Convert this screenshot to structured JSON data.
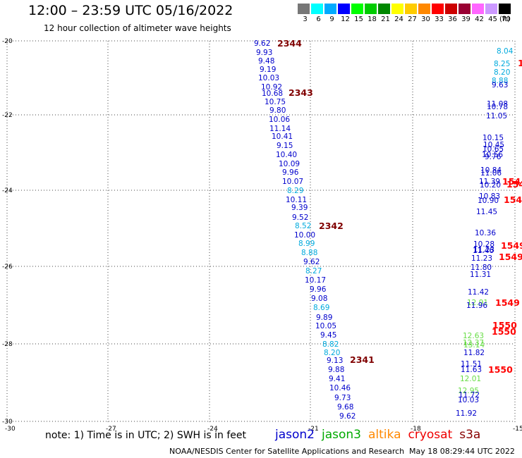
{
  "title": "12:00 – 23:59 UTC 05/16/2022",
  "subtitle": "12 hour collection of altimeter wave heights",
  "legend": {
    "labels": [
      "3",
      "6",
      "9",
      "12",
      "15",
      "18",
      "21",
      "24",
      "27",
      "30",
      "33",
      "36",
      "39",
      "42",
      "45",
      "70"
    ],
    "unit": "(ft)",
    "colors": [
      "#777777",
      "#00ffff",
      "#00aaff",
      "#0000ff",
      "#00ff00",
      "#00cc00",
      "#008800",
      "#ffff00",
      "#ffcc00",
      "#ff8800",
      "#ff0000",
      "#cc0000",
      "#990033",
      "#ff66ff",
      "#cc99ff",
      "#000000"
    ]
  },
  "axes": {
    "lat_labels": [
      "-20",
      "-22",
      "-24",
      "-26",
      "-28",
      "-30"
    ],
    "lon_labels": [
      "-30",
      "-27",
      "-24",
      "-21",
      "-18",
      "-15"
    ]
  },
  "pass_labels": [
    {
      "text": "2344",
      "color": "#800000"
    },
    {
      "text": "2343",
      "color": "#800000"
    },
    {
      "text": "2342",
      "color": "#800000"
    },
    {
      "text": "2341",
      "color": "#800000"
    },
    {
      "text": "1549",
      "color": "#ff0000"
    },
    {
      "text": "1549",
      "color": "#ff0000"
    },
    {
      "text": "1549",
      "color": "#ff0000"
    },
    {
      "text": "1550",
      "color": "#ff0000"
    },
    {
      "text": "1550",
      "color": "#ff0000"
    },
    {
      "text": "1550",
      "color": "#ff0000"
    },
    {
      "text": "154",
      "color": "#ff0000"
    },
    {
      "text": "154",
      "color": "#ff0000"
    },
    {
      "text": "154",
      "color": "#ff0000"
    },
    {
      "text": "1",
      "color": "#ff0000"
    }
  ],
  "observations": [
    {
      "v": "9.62",
      "c": "#0000cc"
    },
    {
      "v": "9.93",
      "c": "#0000cc"
    },
    {
      "v": "9.48",
      "c": "#0000cc"
    },
    {
      "v": "9.19",
      "c": "#0000cc"
    },
    {
      "v": "10.03",
      "c": "#0000cc"
    },
    {
      "v": "10.92",
      "c": "#0000cc"
    },
    {
      "v": "10.68",
      "c": "#0000cc"
    },
    {
      "v": "10.75",
      "c": "#0000cc"
    },
    {
      "v": "9.80",
      "c": "#0000cc"
    },
    {
      "v": "10.06",
      "c": "#0000cc"
    },
    {
      "v": "11.14",
      "c": "#0000cc"
    },
    {
      "v": "10.41",
      "c": "#0000cc"
    },
    {
      "v": "9.15",
      "c": "#0000cc"
    },
    {
      "v": "10.40",
      "c": "#0000cc"
    },
    {
      "v": "10.09",
      "c": "#0000cc"
    },
    {
      "v": "9.96",
      "c": "#0000cc"
    },
    {
      "v": "10.07",
      "c": "#0000cc"
    },
    {
      "v": "8.29",
      "c": "#00aadd"
    },
    {
      "v": "10.11",
      "c": "#0000cc"
    },
    {
      "v": "9.39",
      "c": "#0000cc"
    },
    {
      "v": "9.52",
      "c": "#0000cc"
    },
    {
      "v": "8.52",
      "c": "#00aadd"
    },
    {
      "v": "10.00",
      "c": "#0000cc"
    },
    {
      "v": "8.99",
      "c": "#00aadd"
    },
    {
      "v": "8.88",
      "c": "#00aadd"
    },
    {
      "v": "9.62",
      "c": "#0000cc"
    },
    {
      "v": "8.27",
      "c": "#00aadd"
    },
    {
      "v": "10.17",
      "c": "#0000cc"
    },
    {
      "v": "9.96",
      "c": "#0000cc"
    },
    {
      "v": "9.08",
      "c": "#0000cc"
    },
    {
      "v": "8.69",
      "c": "#00aadd"
    },
    {
      "v": "9.89",
      "c": "#0000cc"
    },
    {
      "v": "10.05",
      "c": "#0000cc"
    },
    {
      "v": "9.45",
      "c": "#0000cc"
    },
    {
      "v": "8.82",
      "c": "#00aadd"
    },
    {
      "v": "8.20",
      "c": "#00aadd"
    },
    {
      "v": "9.13",
      "c": "#0000cc"
    },
    {
      "v": "9.88",
      "c": "#0000cc"
    },
    {
      "v": "9.41",
      "c": "#0000cc"
    },
    {
      "v": "10.46",
      "c": "#0000cc"
    },
    {
      "v": "9.73",
      "c": "#0000cc"
    },
    {
      "v": "9.68",
      "c": "#0000cc"
    },
    {
      "v": "9.62",
      "c": "#0000cc"
    },
    {
      "v": "8.04",
      "c": "#00aadd"
    },
    {
      "v": "8.25",
      "c": "#00aadd"
    },
    {
      "v": "8.20",
      "c": "#00aadd"
    },
    {
      "v": "8.88",
      "c": "#00aadd"
    },
    {
      "v": "9.63",
      "c": "#0000cc"
    },
    {
      "v": "11.08",
      "c": "#0000cc"
    },
    {
      "v": "10.78",
      "c": "#0000cc"
    },
    {
      "v": "11.05",
      "c": "#0000cc"
    },
    {
      "v": "10.15",
      "c": "#0000cc"
    },
    {
      "v": "10.45",
      "c": "#0000cc"
    },
    {
      "v": "10.65",
      "c": "#0000cc"
    },
    {
      "v": "10.56",
      "c": "#0000cc"
    },
    {
      "v": "9.76",
      "c": "#0000cc"
    },
    {
      "v": "10.84",
      "c": "#0000cc"
    },
    {
      "v": "11.06",
      "c": "#0000cc"
    },
    {
      "v": "11.39",
      "c": "#0000cc"
    },
    {
      "v": "10.20",
      "c": "#0000cc"
    },
    {
      "v": "10.83",
      "c": "#0000cc"
    },
    {
      "v": "10.90",
      "c": "#0000cc"
    },
    {
      "v": "11.45",
      "c": "#0000cc"
    },
    {
      "v": "10.36",
      "c": "#0000cc"
    },
    {
      "v": "10.28",
      "c": "#0000cc"
    },
    {
      "v": "11.23",
      "c": "#0000cc"
    },
    {
      "v": "11.46",
      "c": "#0000cc"
    },
    {
      "v": "11.23",
      "c": "#0000cc"
    },
    {
      "v": "11.80",
      "c": "#0000cc"
    },
    {
      "v": "11.31",
      "c": "#0000cc"
    },
    {
      "v": "11.42",
      "c": "#0000cc"
    },
    {
      "v": "12.91",
      "c": "#66dd44"
    },
    {
      "v": "11.96",
      "c": "#0000cc"
    },
    {
      "v": "13.14",
      "c": "#66dd44"
    },
    {
      "v": "11.82",
      "c": "#0000cc"
    },
    {
      "v": "12.63",
      "c": "#66dd44"
    },
    {
      "v": "12.37",
      "c": "#66dd44"
    },
    {
      "v": "11.51",
      "c": "#0000cc"
    },
    {
      "v": "11.63",
      "c": "#0000cc"
    },
    {
      "v": "12.01",
      "c": "#66dd44"
    },
    {
      "v": "12.95",
      "c": "#66dd44"
    },
    {
      "v": "11.72",
      "c": "#0000cc"
    },
    {
      "v": "10.03",
      "c": "#0000cc"
    },
    {
      "v": "11.92",
      "c": "#0000cc"
    }
  ],
  "note": "note: 1) Time is in UTC; 2) SWH is in feet",
  "satellites": [
    {
      "name": "jason2",
      "color": "#0000cc"
    },
    {
      "name": "jason3",
      "color": "#00aa00"
    },
    {
      "name": "altika",
      "color": "#ff8800"
    },
    {
      "name": "cryosat",
      "color": "#ee0000"
    },
    {
      "name": "s3a",
      "color": "#880000"
    }
  ],
  "credit": "NOAA/NESDIS Center for Satellite Applications and Research",
  "timestamp": "May 18 08:29:44 UTC 2022"
}
